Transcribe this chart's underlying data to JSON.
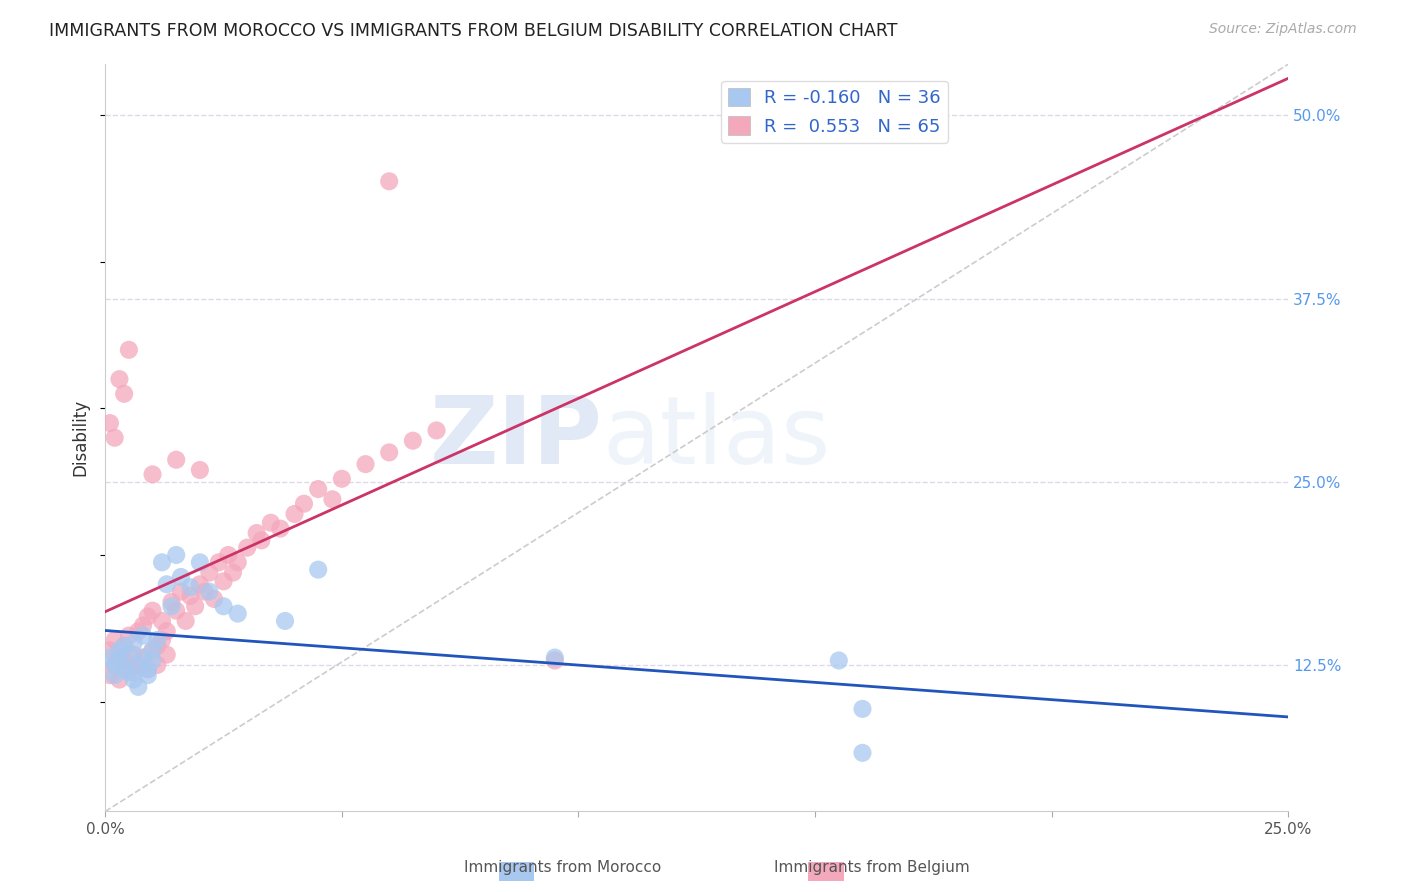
{
  "title": "IMMIGRANTS FROM MOROCCO VS IMMIGRANTS FROM BELGIUM DISABILITY CORRELATION CHART",
  "source": "Source: ZipAtlas.com",
  "ylabel": "Disability",
  "ytick_labels": [
    "12.5%",
    "25.0%",
    "37.5%",
    "50.0%"
  ],
  "ytick_values": [
    0.125,
    0.25,
    0.375,
    0.5
  ],
  "xlim": [
    0.0,
    0.25
  ],
  "ylim": [
    0.025,
    0.535
  ],
  "r_morocco": -0.16,
  "n_morocco": 36,
  "r_belgium": 0.553,
  "n_belgium": 65,
  "color_morocco": "#a8c8f0",
  "color_belgium": "#f4a8bc",
  "line_color_morocco": "#2255bb",
  "line_color_belgium": "#cc3366",
  "diagonal_color": "#cccccc",
  "legend_label_morocco": "Immigrants from Morocco",
  "legend_label_belgium": "Immigrants from Belgium",
  "watermark_zip": "ZIP",
  "watermark_atlas": "atlas",
  "background_color": "#ffffff",
  "morocco_x": [
    0.001,
    0.002,
    0.002,
    0.003,
    0.003,
    0.004,
    0.004,
    0.005,
    0.005,
    0.006,
    0.006,
    0.007,
    0.007,
    0.008,
    0.008,
    0.009,
    0.009,
    0.01,
    0.01,
    0.011,
    0.012,
    0.013,
    0.014,
    0.015,
    0.016,
    0.018,
    0.02,
    0.022,
    0.025,
    0.028,
    0.038,
    0.045,
    0.095,
    0.155,
    0.16,
    0.16
  ],
  "morocco_y": [
    0.13,
    0.125,
    0.118,
    0.135,
    0.128,
    0.122,
    0.138,
    0.132,
    0.12,
    0.14,
    0.115,
    0.125,
    0.11,
    0.13,
    0.145,
    0.118,
    0.122,
    0.128,
    0.135,
    0.142,
    0.195,
    0.18,
    0.165,
    0.2,
    0.185,
    0.178,
    0.195,
    0.175,
    0.165,
    0.16,
    0.155,
    0.19,
    0.13,
    0.128,
    0.095,
    0.065
  ],
  "belgium_x": [
    0.001,
    0.001,
    0.002,
    0.002,
    0.003,
    0.003,
    0.004,
    0.004,
    0.005,
    0.005,
    0.006,
    0.006,
    0.007,
    0.007,
    0.008,
    0.008,
    0.009,
    0.009,
    0.01,
    0.01,
    0.011,
    0.011,
    0.012,
    0.012,
    0.013,
    0.013,
    0.014,
    0.015,
    0.016,
    0.017,
    0.018,
    0.019,
    0.02,
    0.021,
    0.022,
    0.023,
    0.024,
    0.025,
    0.026,
    0.027,
    0.028,
    0.03,
    0.032,
    0.033,
    0.035,
    0.037,
    0.04,
    0.042,
    0.045,
    0.048,
    0.05,
    0.055,
    0.06,
    0.065,
    0.07,
    0.001,
    0.002,
    0.003,
    0.004,
    0.005,
    0.01,
    0.015,
    0.02,
    0.095,
    0.06
  ],
  "belgium_y": [
    0.135,
    0.118,
    0.142,
    0.125,
    0.13,
    0.115,
    0.138,
    0.128,
    0.122,
    0.145,
    0.132,
    0.12,
    0.148,
    0.125,
    0.152,
    0.13,
    0.158,
    0.122,
    0.162,
    0.135,
    0.138,
    0.125,
    0.142,
    0.155,
    0.132,
    0.148,
    0.168,
    0.162,
    0.175,
    0.155,
    0.172,
    0.165,
    0.18,
    0.175,
    0.188,
    0.17,
    0.195,
    0.182,
    0.2,
    0.188,
    0.195,
    0.205,
    0.215,
    0.21,
    0.222,
    0.218,
    0.228,
    0.235,
    0.245,
    0.238,
    0.252,
    0.262,
    0.27,
    0.278,
    0.285,
    0.29,
    0.28,
    0.32,
    0.31,
    0.34,
    0.255,
    0.265,
    0.258,
    0.128,
    0.455
  ]
}
